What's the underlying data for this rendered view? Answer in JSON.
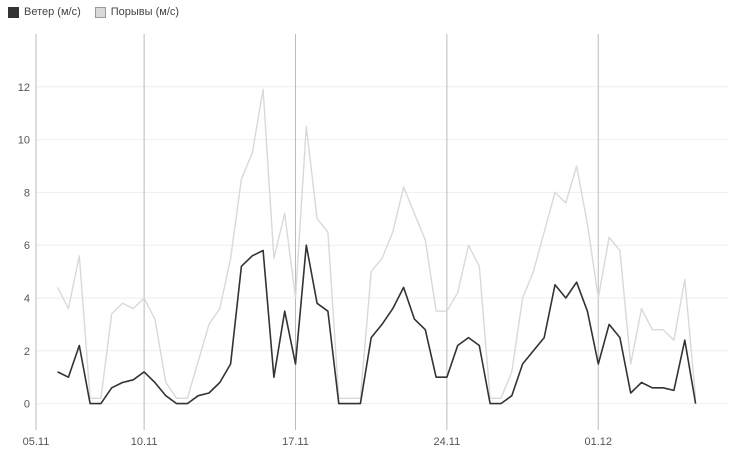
{
  "colors": {
    "wind": "#333333",
    "gusts": "#d9d9d9",
    "grid": "#eeeeee",
    "vline": "#bbbbbb"
  },
  "chart_data": {
    "type": "line",
    "title": "",
    "xlabel": "",
    "ylabel": "",
    "ylim": [
      -1,
      14
    ],
    "x_range": [
      "2024-11-05",
      "2024-12-07"
    ],
    "x_ticks": [
      "05.11",
      "10.11",
      "17.11",
      "24.11",
      "01.12"
    ],
    "y_ticks": [
      0,
      2,
      4,
      6,
      8,
      10,
      12
    ],
    "grid": true,
    "legend_position": "top-left",
    "series": [
      {
        "name": "Ветер (м/с)",
        "color": "#333333",
        "points": [
          [
            "2024-11-06",
            1.2
          ],
          [
            "2024-11-06 12:00",
            1.0
          ],
          [
            "2024-11-07",
            2.2
          ],
          [
            "2024-11-07 12:00",
            0.0
          ],
          [
            "2024-11-08",
            0.0
          ],
          [
            "2024-11-08 12:00",
            0.6
          ],
          [
            "2024-11-09",
            0.8
          ],
          [
            "2024-11-09 12:00",
            0.9
          ],
          [
            "2024-11-10",
            1.2
          ],
          [
            "2024-11-10 12:00",
            0.8
          ],
          [
            "2024-11-11",
            0.3
          ],
          [
            "2024-11-11 12:00",
            0.0
          ],
          [
            "2024-11-12",
            0.0
          ],
          [
            "2024-11-12 12:00",
            0.3
          ],
          [
            "2024-11-13",
            0.4
          ],
          [
            "2024-11-13 12:00",
            0.8
          ],
          [
            "2024-11-14",
            1.5
          ],
          [
            "2024-11-14 12:00",
            5.2
          ],
          [
            "2024-11-15",
            5.6
          ],
          [
            "2024-11-15 12:00",
            5.8
          ],
          [
            "2024-11-16",
            1.0
          ],
          [
            "2024-11-16 12:00",
            3.5
          ],
          [
            "2024-11-17",
            1.5
          ],
          [
            "2024-11-17 12:00",
            6.0
          ],
          [
            "2024-11-18",
            3.8
          ],
          [
            "2024-11-18 12:00",
            3.5
          ],
          [
            "2024-11-19",
            0.0
          ],
          [
            "2024-11-19 12:00",
            0.0
          ],
          [
            "2024-11-20",
            0.0
          ],
          [
            "2024-11-20 12:00",
            2.5
          ],
          [
            "2024-11-21",
            3.0
          ],
          [
            "2024-11-21 12:00",
            3.6
          ],
          [
            "2024-11-22",
            4.4
          ],
          [
            "2024-11-22 12:00",
            3.2
          ],
          [
            "2024-11-23",
            2.8
          ],
          [
            "2024-11-23 12:00",
            1.0
          ],
          [
            "2024-11-24",
            1.0
          ],
          [
            "2024-11-24 12:00",
            2.2
          ],
          [
            "2024-11-25",
            2.5
          ],
          [
            "2024-11-25 12:00",
            2.2
          ],
          [
            "2024-11-26",
            0.0
          ],
          [
            "2024-11-26 12:00",
            0.0
          ],
          [
            "2024-11-27",
            0.3
          ],
          [
            "2024-11-27 12:00",
            1.5
          ],
          [
            "2024-11-28",
            2.0
          ],
          [
            "2024-11-28 12:00",
            2.5
          ],
          [
            "2024-11-29",
            4.5
          ],
          [
            "2024-11-29 12:00",
            4.0
          ],
          [
            "2024-11-30",
            4.6
          ],
          [
            "2024-11-30 12:00",
            3.5
          ],
          [
            "2024-12-01",
            1.5
          ],
          [
            "2024-12-01 12:00",
            3.0
          ],
          [
            "2024-12-02",
            2.5
          ],
          [
            "2024-12-02 12:00",
            0.4
          ],
          [
            "2024-12-03",
            0.8
          ],
          [
            "2024-12-03 12:00",
            0.6
          ],
          [
            "2024-12-04",
            0.6
          ],
          [
            "2024-12-04 12:00",
            0.5
          ],
          [
            "2024-12-05",
            2.4
          ],
          [
            "2024-12-05 12:00",
            0.0
          ]
        ]
      },
      {
        "name": "Порывы (м/с)",
        "color": "#d9d9d9",
        "points": [
          [
            "2024-11-06",
            4.4
          ],
          [
            "2024-11-06 12:00",
            3.6
          ],
          [
            "2024-11-07",
            5.6
          ],
          [
            "2024-11-07 12:00",
            0.2
          ],
          [
            "2024-11-08",
            0.2
          ],
          [
            "2024-11-08 12:00",
            3.4
          ],
          [
            "2024-11-09",
            3.8
          ],
          [
            "2024-11-09 12:00",
            3.6
          ],
          [
            "2024-11-10",
            4.0
          ],
          [
            "2024-11-10 12:00",
            3.2
          ],
          [
            "2024-11-11",
            0.8
          ],
          [
            "2024-11-11 12:00",
            0.2
          ],
          [
            "2024-11-12",
            0.2
          ],
          [
            "2024-11-12 12:00",
            1.6
          ],
          [
            "2024-11-13",
            3.0
          ],
          [
            "2024-11-13 12:00",
            3.6
          ],
          [
            "2024-11-14",
            5.5
          ],
          [
            "2024-11-14 12:00",
            8.5
          ],
          [
            "2024-11-15",
            9.5
          ],
          [
            "2024-11-15 12:00",
            11.9
          ],
          [
            "2024-11-16",
            5.5
          ],
          [
            "2024-11-16 12:00",
            7.2
          ],
          [
            "2024-11-17",
            4.0
          ],
          [
            "2024-11-17 12:00",
            10.5
          ],
          [
            "2024-11-18",
            7.0
          ],
          [
            "2024-11-18 12:00",
            6.5
          ],
          [
            "2024-11-19",
            0.2
          ],
          [
            "2024-11-19 12:00",
            0.2
          ],
          [
            "2024-11-20",
            0.2
          ],
          [
            "2024-11-20 12:00",
            5.0
          ],
          [
            "2024-11-21",
            5.5
          ],
          [
            "2024-11-21 12:00",
            6.5
          ],
          [
            "2024-11-22",
            8.2
          ],
          [
            "2024-11-22 12:00",
            7.2
          ],
          [
            "2024-11-23",
            6.2
          ],
          [
            "2024-11-23 12:00",
            3.5
          ],
          [
            "2024-11-24",
            3.5
          ],
          [
            "2024-11-24 12:00",
            4.2
          ],
          [
            "2024-11-25",
            6.0
          ],
          [
            "2024-11-25 12:00",
            5.2
          ],
          [
            "2024-11-26",
            0.2
          ],
          [
            "2024-11-26 12:00",
            0.2
          ],
          [
            "2024-11-27",
            1.2
          ],
          [
            "2024-11-27 12:00",
            4.0
          ],
          [
            "2024-11-28",
            5.0
          ],
          [
            "2024-11-28 12:00",
            6.5
          ],
          [
            "2024-11-29",
            8.0
          ],
          [
            "2024-11-29 12:00",
            7.6
          ],
          [
            "2024-11-30",
            9.0
          ],
          [
            "2024-11-30 12:00",
            6.8
          ],
          [
            "2024-12-01",
            4.0
          ],
          [
            "2024-12-01 12:00",
            6.3
          ],
          [
            "2024-12-02",
            5.8
          ],
          [
            "2024-12-02 12:00",
            1.5
          ],
          [
            "2024-12-03",
            3.6
          ],
          [
            "2024-12-03 12:00",
            2.8
          ],
          [
            "2024-12-04",
            2.8
          ],
          [
            "2024-12-04 12:00",
            2.4
          ],
          [
            "2024-12-05",
            4.7
          ],
          [
            "2024-12-05 12:00",
            0.2
          ]
        ]
      }
    ]
  }
}
